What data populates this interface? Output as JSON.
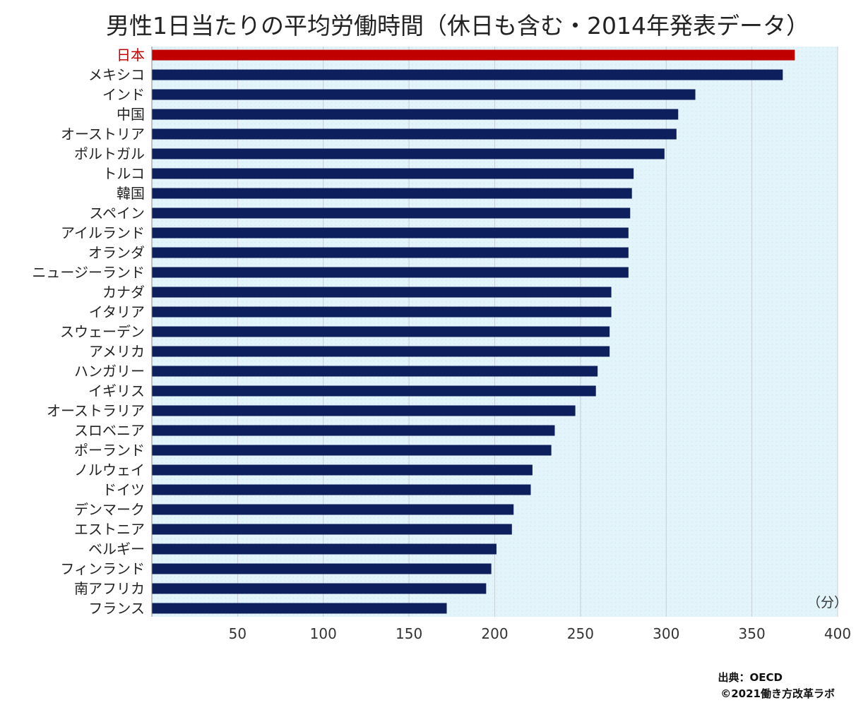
{
  "chart_data": {
    "type": "bar",
    "orientation": "horizontal",
    "title": "男性1日当たりの平均労働時間（休日も含む・2014年発表データ）",
    "categories": [
      "日本",
      "メキシコ",
      "インド",
      "中国",
      "オーストリア",
      "ポルトガル",
      "トルコ",
      "韓国",
      "スペイン",
      "アイルランド",
      "オランダ",
      "ニュージーランド",
      "カナダ",
      "イタリア",
      "スウェーデン",
      "アメリカ",
      "ハンガリー",
      "イギリス",
      "オーストラリア",
      "スロベニア",
      "ポーランド",
      "ノルウェイ",
      "ドイツ",
      "デンマーク",
      "エストニア",
      "ベルギー",
      "フィンランド",
      "南アフリカ",
      "フランス"
    ],
    "values": [
      375,
      368,
      317,
      307,
      306,
      299,
      281,
      280,
      279,
      278,
      278,
      278,
      268,
      268,
      267,
      267,
      260,
      259,
      247,
      235,
      233,
      222,
      221,
      211,
      210,
      201,
      198,
      195,
      172
    ],
    "highlight": "日本",
    "xlim": [
      0,
      400
    ],
    "xticks": [
      50,
      100,
      150,
      200,
      250,
      300,
      350,
      400
    ],
    "unit": "（分）",
    "grid": true
  },
  "colors": {
    "bar": "#0d1f5c",
    "highlight_bar": "#c00000",
    "highlight_label": "#c00000",
    "label": "#222222",
    "plot_background": "#e3f4fb",
    "grid": "#c9ced3"
  },
  "footer": {
    "source": "出典：OECD",
    "credit": "©2021働き方改革ラボ"
  }
}
